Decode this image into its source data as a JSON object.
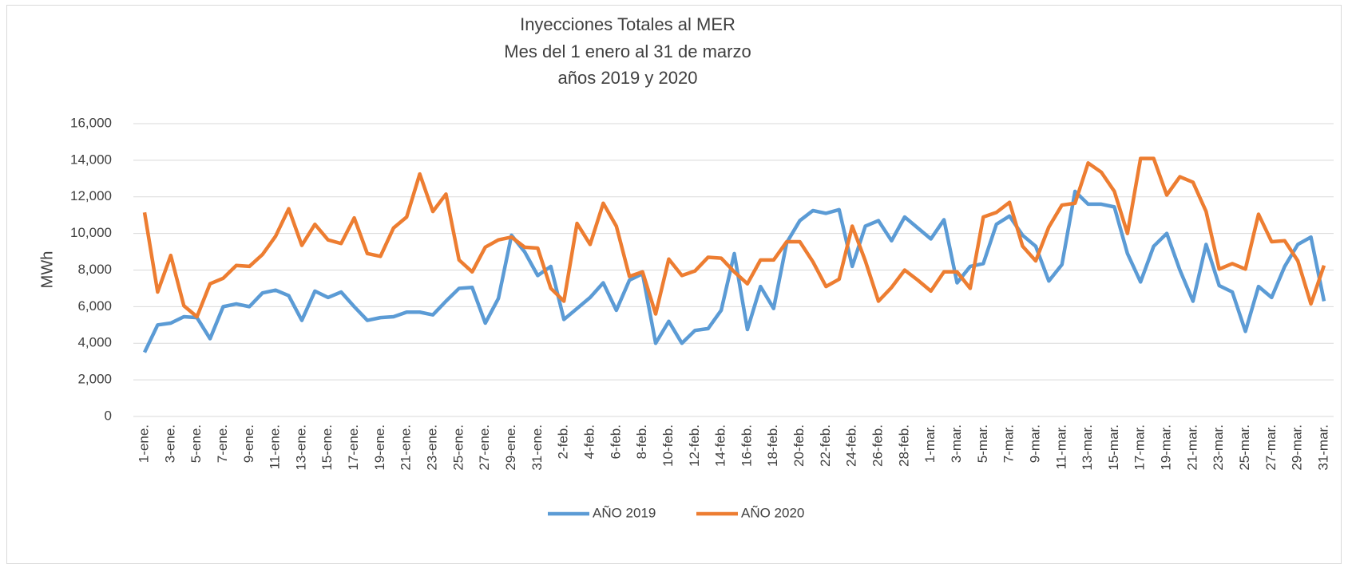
{
  "chart_data": {
    "type": "line",
    "title": [
      "Inyecciones Totales al MER",
      "Mes del 1 enero al 31 de marzo",
      "años 2019 y 2020"
    ],
    "y_label": "MWh",
    "categories": [
      "1-ene.",
      null,
      "3-ene.",
      null,
      "5-ene.",
      null,
      "7-ene.",
      null,
      "9-ene.",
      null,
      "11-ene.",
      null,
      "13-ene.",
      null,
      "15-ene.",
      null,
      "17-ene.",
      null,
      "19-ene.",
      null,
      "21-ene.",
      null,
      "23-ene.",
      null,
      "25-ene.",
      null,
      "27-ene.",
      null,
      "29-ene.",
      null,
      "31-ene.",
      null,
      "2-feb.",
      null,
      "4-feb.",
      null,
      "6-feb.",
      null,
      "8-feb.",
      null,
      "10-feb.",
      null,
      "12-feb.",
      null,
      "14-feb.",
      null,
      "16-feb.",
      null,
      "18-feb.",
      null,
      "20-feb.",
      null,
      "22-feb.",
      null,
      "24-feb.",
      null,
      "26-feb.",
      null,
      "28-feb.",
      null,
      "1-mar.",
      null,
      "3-mar.",
      null,
      "5-mar.",
      null,
      "7-mar.",
      null,
      "9-mar.",
      null,
      "11-mar.",
      null,
      "13-mar.",
      null,
      "15-mar.",
      null,
      "17-mar.",
      null,
      "19-mar.",
      null,
      "21-mar.",
      null,
      "23-mar.",
      null,
      "25-mar.",
      null,
      "27-mar.",
      null,
      "29-mar.",
      null,
      "31-mar."
    ],
    "series": [
      {
        "name": "AÑO 2019",
        "color": "#5b9bd5",
        "values": [
          3500,
          5000,
          5100,
          5450,
          5400,
          4250,
          6000,
          6150,
          6000,
          6750,
          6900,
          6600,
          5250,
          6850,
          6500,
          6800,
          6000,
          5250,
          5400,
          5450,
          5700,
          5700,
          5550,
          6300,
          7000,
          7050,
          5100,
          6450,
          9900,
          9000,
          7700,
          8200,
          5300,
          5900,
          6500,
          7300,
          5800,
          7450,
          7800,
          4000,
          5200,
          4000,
          4700,
          4800,
          5800,
          8900,
          4750,
          7100,
          5900,
          9500,
          10700,
          11250,
          11100,
          11300,
          8200,
          10400,
          10700,
          9600,
          10900,
          10300,
          9700,
          10750,
          7300,
          8200,
          8350,
          10500,
          10950,
          9900,
          9300,
          7400,
          8300,
          12300,
          11600,
          11600,
          11450,
          8900,
          7350,
          9300,
          10000,
          8000,
          6300,
          9400,
          7150,
          6800,
          4650,
          7100,
          6500,
          8200,
          9400,
          9800,
          6300
        ]
      },
      {
        "name": "AÑO 2020",
        "color": "#ed7d31",
        "values": [
          11150,
          6800,
          8800,
          6050,
          5450,
          7250,
          7550,
          8250,
          8200,
          8850,
          9850,
          11350,
          9350,
          10500,
          9650,
          9450,
          10850,
          8900,
          8750,
          10300,
          10900,
          13250,
          11200,
          12150,
          8550,
          7900,
          9250,
          9650,
          9800,
          9250,
          9200,
          7000,
          6300,
          10550,
          9400,
          11650,
          10400,
          7650,
          7900,
          5600,
          8600,
          7700,
          7950,
          8700,
          8650,
          7900,
          7250,
          8550,
          8550,
          9550,
          9550,
          8450,
          7100,
          7500,
          10400,
          8500,
          6300,
          7050,
          8000,
          7450,
          6850,
          7900,
          7900,
          7000,
          10900,
          11150,
          11700,
          9300,
          8500,
          10350,
          11550,
          11650,
          13850,
          13350,
          12300,
          10000,
          14100,
          14100,
          12100,
          13100,
          12800,
          11200,
          8050,
          8350,
          8050,
          11050,
          9550,
          9600,
          8500,
          6150,
          8250
        ]
      }
    ],
    "ylim": [
      0,
      16000
    ],
    "yticks": [
      0,
      {
        "value": 2000,
        "label": "2,000"
      },
      {
        "value": 4000,
        "label": "4,000"
      },
      {
        "value": 6000,
        "label": "6,000"
      },
      {
        "value": 8000,
        "label": "8,000"
      },
      {
        "value": 10000,
        "label": "10,000"
      },
      {
        "value": 12000,
        "label": "12,000"
      },
      {
        "value": 14000,
        "label": "14,000"
      },
      {
        "value": 16000,
        "label": "16,000"
      }
    ],
    "grid": true,
    "legend": "bottom"
  }
}
